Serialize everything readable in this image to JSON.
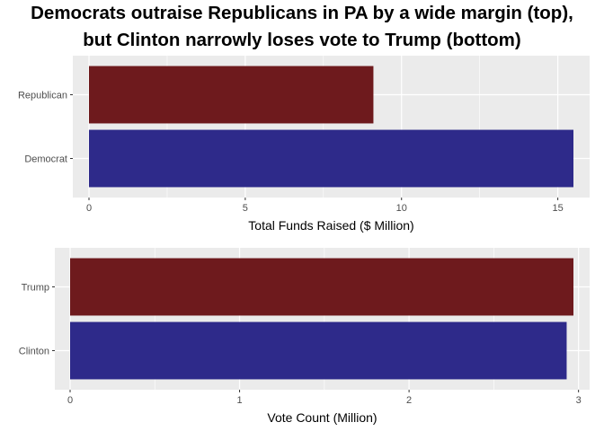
{
  "title": {
    "line1": "Democrats outraise Republicans in PA by a wide margin (top),",
    "line2": "but Clinton narrowly loses vote to Trump (bottom)"
  },
  "colors": {
    "republican": "#6e1a1d",
    "democrat": "#2e2a8a",
    "panel_background": "#ebebeb",
    "gridline": "#ffffff"
  },
  "chart_data": [
    {
      "type": "bar",
      "orientation": "horizontal",
      "categories": [
        "Republican",
        "Democrat"
      ],
      "values": [
        9.1,
        15.5
      ],
      "bar_colors": [
        "#6e1a1d",
        "#2e2a8a"
      ],
      "xlabel": "Total Funds Raised ($ Million)",
      "ylabel": "",
      "xlim": [
        0,
        15.5
      ],
      "xticks": [
        0,
        5,
        10,
        15
      ],
      "xtick_labels": [
        "0",
        "5",
        "10",
        "15"
      ],
      "grid": true,
      "legend": "none"
    },
    {
      "type": "bar",
      "orientation": "horizontal",
      "categories": [
        "Trump",
        "Clinton"
      ],
      "values": [
        2.97,
        2.93
      ],
      "bar_colors": [
        "#6e1a1d",
        "#2e2a8a"
      ],
      "xlabel": "Vote Count (Million)",
      "ylabel": "",
      "xlim": [
        0,
        2.97
      ],
      "xticks": [
        0,
        1,
        2,
        3
      ],
      "xtick_labels": [
        "0",
        "1",
        "2",
        "3"
      ],
      "grid": true,
      "legend": "none"
    }
  ]
}
